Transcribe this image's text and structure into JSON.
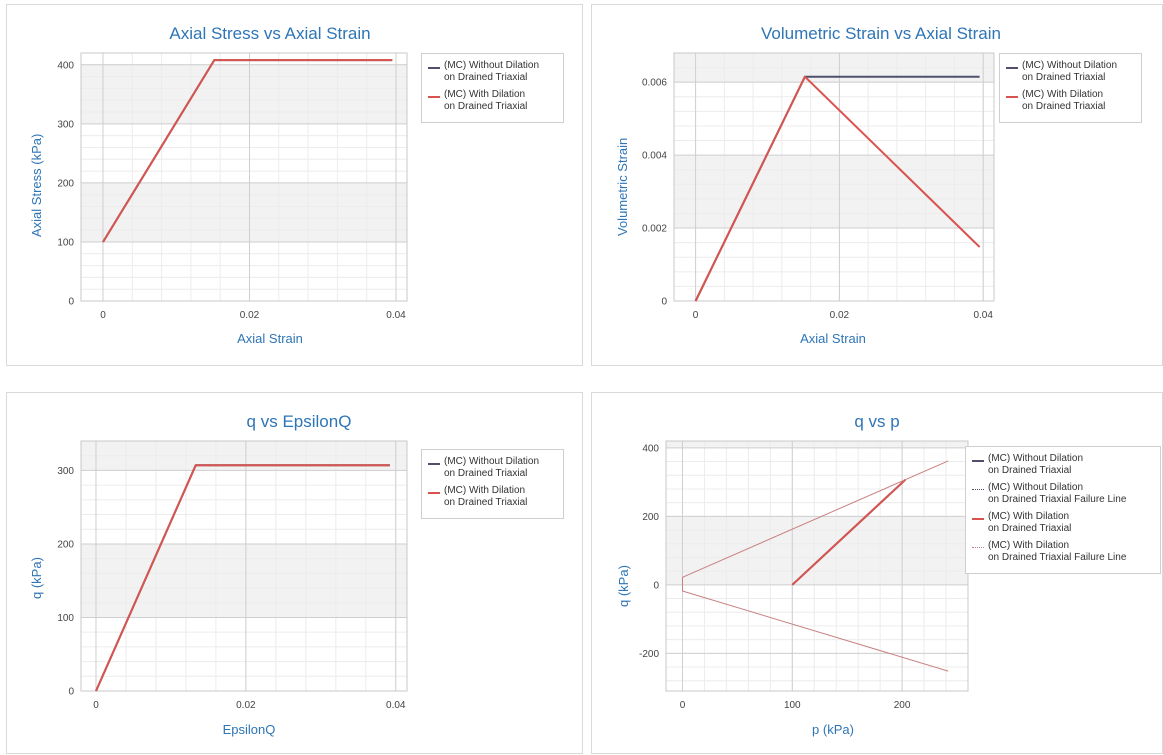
{
  "chart_data": [
    {
      "type": "line",
      "title": "Axial Stress vs Axial Strain",
      "xlabel": "Axial Strain",
      "ylabel": "Axial Stress (kPa)",
      "xlim": [
        -0.003,
        0.0415
      ],
      "ylim": [
        0,
        420
      ],
      "xticks": [
        0,
        0.02,
        0.04
      ],
      "xtick_labels": [
        "0",
        "0.02",
        "0.04"
      ],
      "yticks": [
        0,
        100,
        200,
        300,
        400
      ],
      "ytick_labels": [
        "0",
        "100",
        "200",
        "300",
        "400"
      ],
      "grid": true,
      "legend_position": "top-right",
      "series": [
        {
          "name": "(MC) Without Dilation\non Drained Triaxial",
          "color": "#4f4f6b",
          "x": [
            0,
            0.0152,
            0.0395
          ],
          "y": [
            100,
            408,
            408
          ]
        },
        {
          "name": "(MC) With Dilation\non Drained Triaxial",
          "color": "#d9534f",
          "x": [
            0,
            0.0152,
            0.0395
          ],
          "y": [
            100,
            408,
            408
          ]
        }
      ]
    },
    {
      "type": "line",
      "title": "Volumetric Strain vs Axial Strain",
      "xlabel": "Axial Strain",
      "ylabel": "Volumetric Strain",
      "xlim": [
        -0.003,
        0.0415
      ],
      "ylim": [
        0,
        0.0068
      ],
      "xticks": [
        0,
        0.02,
        0.04
      ],
      "xtick_labels": [
        "0",
        "0.02",
        "0.04"
      ],
      "yticks": [
        0,
        0.002,
        0.004,
        0.006
      ],
      "ytick_labels": [
        "0",
        "0.002",
        "0.004",
        "0.006"
      ],
      "grid": true,
      "legend_position": "top-right",
      "series": [
        {
          "name": "(MC) Without Dilation\non Drained Triaxial",
          "color": "#4f4f6b",
          "x": [
            0,
            0.0152,
            0.0395
          ],
          "y": [
            0,
            0.00615,
            0.00615
          ]
        },
        {
          "name": "(MC) With Dilation\non Drained Triaxial",
          "color": "#d9534f",
          "x": [
            0,
            0.0152,
            0.0395
          ],
          "y": [
            0,
            0.00615,
            0.00148
          ]
        }
      ]
    },
    {
      "type": "line",
      "title": "q vs EpsilonQ",
      "xlabel": "EpsilonQ",
      "ylabel": "q (kPa)",
      "xlim": [
        -0.002,
        0.0415
      ],
      "ylim": [
        0,
        340
      ],
      "xticks": [
        0,
        0.02,
        0.04
      ],
      "xtick_labels": [
        "0",
        "0.02",
        "0.04"
      ],
      "yticks": [
        0,
        100,
        200,
        300
      ],
      "ytick_labels": [
        "0",
        "100",
        "200",
        "300"
      ],
      "grid": true,
      "legend_position": "top-right",
      "series": [
        {
          "name": "(MC) Without Dilation\non Drained Triaxial",
          "color": "#4f4f6b",
          "x": [
            0,
            0.0133,
            0.0392
          ],
          "y": [
            0,
            307,
            307
          ]
        },
        {
          "name": "(MC) With Dilation\non Drained Triaxial",
          "color": "#d9534f",
          "x": [
            0,
            0.0133,
            0.0392
          ],
          "y": [
            0,
            307,
            307
          ]
        }
      ]
    },
    {
      "type": "line",
      "title": "q vs p",
      "xlabel": "p (kPa)",
      "ylabel": "q (kPa)",
      "xlim": [
        -15,
        260
      ],
      "ylim": [
        -310,
        420
      ],
      "xticks": [
        0,
        100,
        200
      ],
      "xtick_labels": [
        "0",
        "100",
        "200"
      ],
      "yticks": [
        -200,
        0,
        200,
        400
      ],
      "ytick_labels": [
        "-200",
        "0",
        "200",
        "400"
      ],
      "grid": true,
      "legend_position": "top-right",
      "series": [
        {
          "name": "(MC) Without Dilation\non Drained Triaxial",
          "color": "#4f4f6b",
          "x": [
            100,
            203
          ],
          "y": [
            0,
            307
          ]
        },
        {
          "name": "(MC) Without Dilation\non Drained Triaxial Failure Line",
          "color": "#4f4f6b",
          "dashed": true,
          "x": [],
          "y": []
        },
        {
          "name": "(MC) With Dilation\non Drained Triaxial",
          "color": "#d9534f",
          "x": [
            100,
            203
          ],
          "y": [
            0,
            307
          ]
        },
        {
          "name": "(MC) With Dilation\non Drained Triaxial Failure Line",
          "color": "#c98080",
          "dashed": true,
          "x": [
            242,
            0,
            0,
            242
          ],
          "y": [
            362,
            22,
            -18,
            -252
          ]
        }
      ]
    }
  ]
}
